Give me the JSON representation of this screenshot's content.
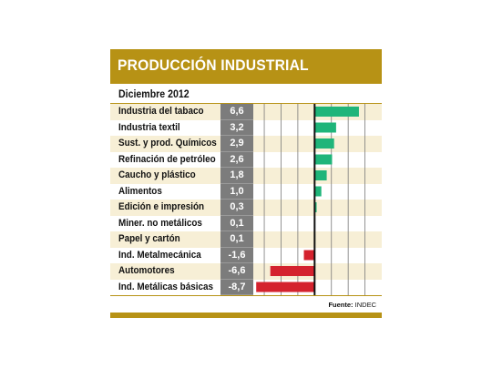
{
  "header": {
    "title": "PRODUCCIÓN INDUSTRIAL"
  },
  "subtitle": "Diciembre 2012",
  "source": {
    "label": "Fuente:",
    "name": "INDEC"
  },
  "colors": {
    "accent": "#b79215",
    "positive": "#1fb57a",
    "negative": "#d4222e",
    "value_box": "#7c7c7c"
  },
  "chart_data": {
    "type": "bar",
    "orientation": "horizontal",
    "title": "PRODUCCIÓN INDUSTRIAL",
    "subtitle": "Diciembre 2012",
    "categories": [
      "Industria del tabaco",
      "Industria textil",
      "Sust. y prod. Químicos",
      "Refinación de petróleo",
      "Caucho y plástico",
      "Alimentos",
      "Edición e impresión",
      "Miner. no metálicos",
      "Papel y cartón",
      "Ind. Metalmecánica",
      "Automotores",
      "Ind. Metálicas básicas"
    ],
    "values": [
      6.6,
      3.2,
      2.9,
      2.6,
      1.8,
      1.0,
      0.3,
      0.1,
      0.1,
      -1.6,
      -6.6,
      -8.7
    ],
    "value_labels": [
      "6,6",
      "3,2",
      "2,9",
      "2,6",
      "1,8",
      "1,0",
      "0,3",
      "0,1",
      "0,1",
      "-1,6",
      "-6,6",
      "-8,7"
    ],
    "xlim": [
      -9,
      10
    ],
    "grid": true,
    "source": "Fuente: INDEC"
  }
}
